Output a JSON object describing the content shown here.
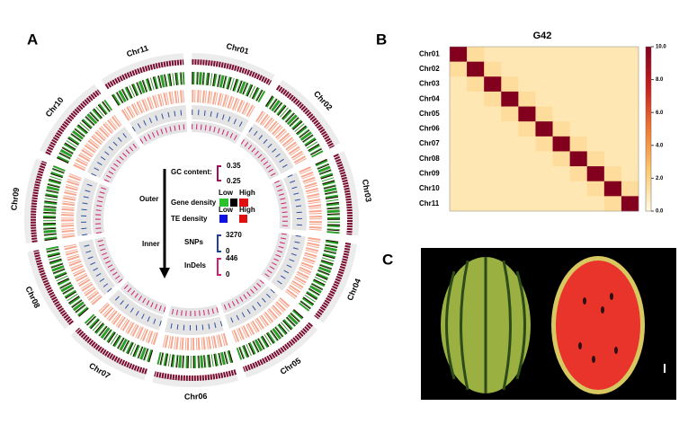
{
  "panels": {
    "a": "A",
    "b": "B",
    "c": "C"
  },
  "circos": {
    "chromosomes": [
      "Chr01",
      "Chr02",
      "Chr03",
      "Chr04",
      "Chr05",
      "Chr06",
      "Chr07",
      "Chr08",
      "Chr09",
      "Chr10",
      "Chr11"
    ],
    "legend": {
      "outer": "Outer",
      "inner": "Inner",
      "gc": "GC content:",
      "gc_max": 0.35,
      "gc_min": 0.25,
      "gene": "Gene density",
      "te": "TE density",
      "low1": "Low",
      "high1": "High",
      "low2": "Low",
      "high2": "High",
      "snps": "SNPs",
      "snps_max": 3270,
      "snps_min": 0,
      "indels": "InDels",
      "indels_max": 446,
      "indels_min": 0
    }
  },
  "heatmap": {
    "title": "G42",
    "labels": [
      "Chr01",
      "Chr02",
      "Chr03",
      "Chr04",
      "Chr05",
      "Chr06",
      "Chr07",
      "Chr08",
      "Chr09",
      "Chr10",
      "Chr11"
    ],
    "values": [
      [
        10,
        1.5,
        1,
        1,
        1,
        1,
        1,
        1,
        1,
        1,
        1
      ],
      [
        1.5,
        10,
        1.5,
        1,
        1,
        1,
        1,
        1,
        1,
        1,
        1
      ],
      [
        1,
        1.5,
        10,
        1.5,
        1,
        1,
        1,
        1,
        1,
        1,
        1
      ],
      [
        1,
        1,
        1.5,
        10,
        1.5,
        1,
        1,
        1,
        1,
        1,
        1
      ],
      [
        1,
        1,
        1,
        1.5,
        10,
        1.5,
        1,
        1,
        1,
        1,
        1
      ],
      [
        1,
        1,
        1,
        1,
        1.5,
        10,
        1.5,
        1,
        1,
        1,
        1
      ],
      [
        1,
        1,
        1,
        1,
        1,
        1.5,
        10,
        1.5,
        1,
        1,
        1
      ],
      [
        1,
        1,
        1,
        1,
        1,
        1,
        1.5,
        10,
        1.5,
        1,
        1
      ],
      [
        1,
        1,
        1,
        1,
        1,
        1,
        1,
        1.5,
        10,
        1.5,
        1
      ],
      [
        1,
        1,
        1,
        1,
        1,
        1,
        1,
        1,
        1.5,
        10,
        1.5
      ],
      [
        1,
        1,
        1,
        1,
        1,
        1,
        1,
        1,
        1,
        1.5,
        10
      ]
    ],
    "clim": [
      0,
      10
    ],
    "cticks": [
      {
        "value": 10,
        "label": "10.0"
      },
      {
        "value": 8,
        "label": "8.0"
      },
      {
        "value": 6,
        "label": "6.0"
      },
      {
        "value": 4,
        "label": "4.0"
      },
      {
        "value": 2,
        "label": "2.0"
      },
      {
        "value": 0,
        "label": "0.0"
      }
    ]
  }
}
